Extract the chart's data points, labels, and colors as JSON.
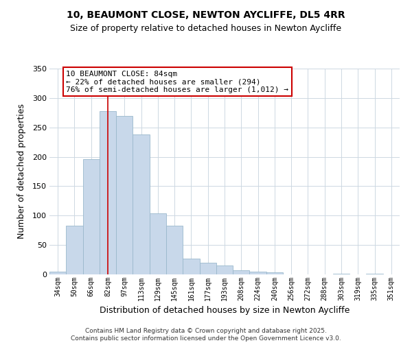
{
  "title_line1": "10, BEAUMONT CLOSE, NEWTON AYCLIFFE, DL5 4RR",
  "title_line2": "Size of property relative to detached houses in Newton Aycliffe",
  "xlabel": "Distribution of detached houses by size in Newton Aycliffe",
  "ylabel": "Number of detached properties",
  "bar_labels": [
    "34sqm",
    "50sqm",
    "66sqm",
    "82sqm",
    "97sqm",
    "113sqm",
    "129sqm",
    "145sqm",
    "161sqm",
    "177sqm",
    "193sqm",
    "208sqm",
    "224sqm",
    "240sqm",
    "256sqm",
    "272sqm",
    "288sqm",
    "303sqm",
    "319sqm",
    "335sqm",
    "351sqm"
  ],
  "bar_values": [
    5,
    83,
    196,
    278,
    270,
    238,
    104,
    83,
    27,
    20,
    15,
    7,
    5,
    3,
    0,
    0,
    0,
    1,
    0,
    1,
    0
  ],
  "bar_color": "#c8d8ea",
  "bar_edge_color": "#9ab8cc",
  "vline_index": 3,
  "vline_color": "#cc0000",
  "annotation_title": "10 BEAUMONT CLOSE: 84sqm",
  "annotation_line1": "← 22% of detached houses are smaller (294)",
  "annotation_line2": "76% of semi-detached houses are larger (1,012) →",
  "annotation_box_color": "#ffffff",
  "annotation_box_edgecolor": "#cc0000",
  "ylim": [
    0,
    350
  ],
  "yticks": [
    0,
    50,
    100,
    150,
    200,
    250,
    300,
    350
  ],
  "footer_line1": "Contains HM Land Registry data © Crown copyright and database right 2025.",
  "footer_line2": "Contains public sector information licensed under the Open Government Licence v3.0.",
  "background_color": "#ffffff",
  "grid_color": "#cdd8e2"
}
